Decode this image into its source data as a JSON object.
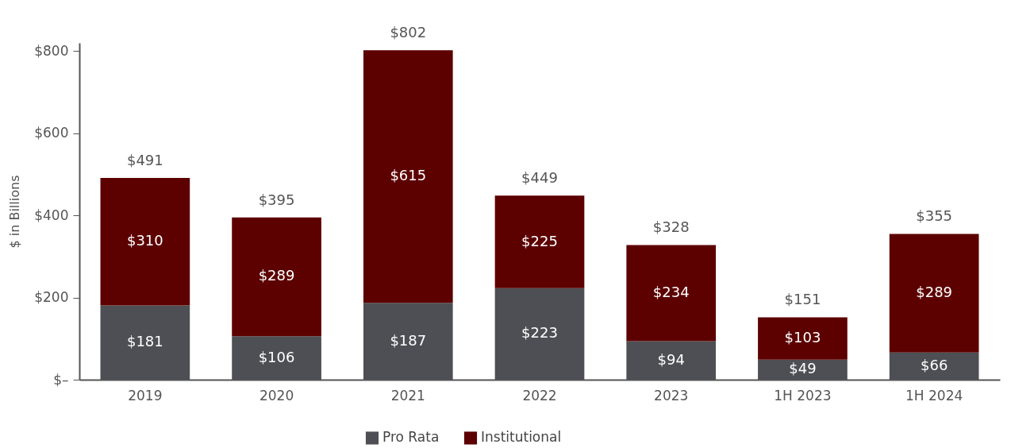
{
  "chart_data": {
    "type": "bar",
    "stacked": true,
    "ylabel": "$ in Billions",
    "categories": [
      "2019",
      "2020",
      "2021",
      "2022",
      "2023",
      "1H 2023",
      "1H 2024"
    ],
    "series": [
      {
        "name": "Pro Rata",
        "color": "#4d4f54",
        "values": [
          181,
          106,
          187,
          223,
          94,
          49,
          66
        ],
        "value_labels": [
          "$181",
          "$106",
          "$187",
          "$223",
          "$94",
          "$49",
          "$66"
        ]
      },
      {
        "name": "Institutional",
        "color": "#5c0000",
        "values": [
          310,
          289,
          615,
          225,
          234,
          103,
          289
        ],
        "value_labels": [
          "$310",
          "$289",
          "$615",
          "$225",
          "$234",
          "$103",
          "$289"
        ]
      }
    ],
    "totals": [
      "$491",
      "$395",
      "$802",
      "$449",
      "$328",
      "$151",
      "$355"
    ],
    "ylim": [
      0,
      820
    ],
    "yticks": [
      {
        "value": 0,
        "label": "$–"
      },
      {
        "value": 200,
        "label": "$200"
      },
      {
        "value": 400,
        "label": "$400"
      },
      {
        "value": 600,
        "label": "$600"
      },
      {
        "value": 800,
        "label": "$800"
      }
    ],
    "grid": false,
    "legend": "bottom"
  }
}
